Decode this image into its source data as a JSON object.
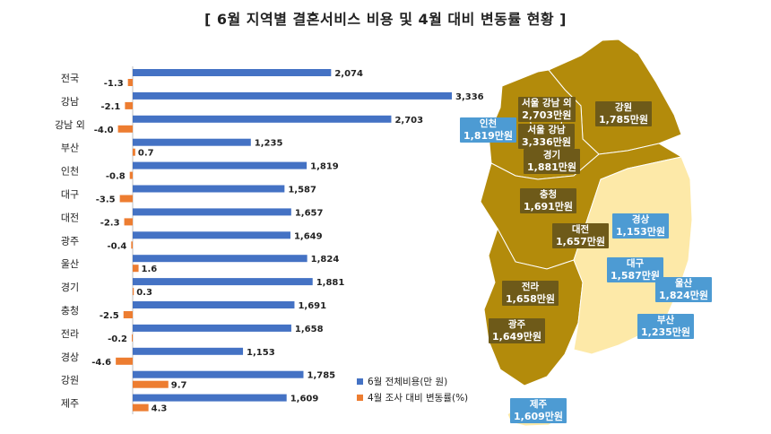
{
  "title": "[ 6월 지역별 결혼서비스 비용 및 4월 대비 변동률 현황 ]",
  "colors": {
    "cost_bar": "#4472c4",
    "change_bar": "#ed7d31",
    "map_dark": "#b38b0b",
    "map_light": "#fde9a8",
    "map_border": "#ffffff",
    "label_dark": "#6e5a19",
    "label_blue": "#4d9bd3"
  },
  "legend": {
    "cost": "6월 전체비용(만 원)",
    "change": "4월 조사 대비 변동률(%)"
  },
  "chart_data": {
    "type": "bar",
    "orientation": "horizontal",
    "categories": [
      "전국",
      "강남",
      "강남 외",
      "부산",
      "인천",
      "대구",
      "대전",
      "광주",
      "울산",
      "경기",
      "충청",
      "전라",
      "경상",
      "강원",
      "제주"
    ],
    "series": [
      {
        "name": "6월 전체비용(만 원)",
        "values": [
          2074,
          3336,
          2703,
          1235,
          1819,
          1587,
          1657,
          1649,
          1824,
          1881,
          1691,
          1658,
          1153,
          1785,
          1609
        ],
        "value_labels": [
          "2,074",
          "3,336",
          "2,703",
          "1,235",
          "1,819",
          "1,587",
          "1,657",
          "1,649",
          "1,824",
          "1,881",
          "1,691",
          "1,658",
          "1,153",
          "1,785",
          "1,609"
        ]
      },
      {
        "name": "4월 조사 대비 변동률(%)",
        "values": [
          -1.3,
          -2.1,
          -4.0,
          0.7,
          -0.8,
          -3.5,
          -2.3,
          -0.4,
          1.6,
          0.3,
          -2.5,
          -0.2,
          -4.6,
          9.7,
          4.3
        ],
        "value_labels": [
          "-1.3",
          "-2.1",
          "-4.0",
          "0.7",
          "-0.8",
          "-3.5",
          "-2.3",
          "-0.4",
          "1.6",
          "0.3",
          "-2.5",
          "-0.2",
          "-4.6",
          "9.7",
          "4.3"
        ]
      }
    ]
  },
  "map_labels": [
    {
      "id": "seoul-outer",
      "name": "서울 강남 외",
      "value": "2,703만원",
      "style": "dark"
    },
    {
      "id": "seoul-gangnam",
      "name": "서울 강남",
      "value": "3,336만원",
      "style": "dark"
    },
    {
      "id": "incheon",
      "name": "인천",
      "value": "1,819만원",
      "style": "blue"
    },
    {
      "id": "gangwon",
      "name": "강원",
      "value": "1,785만원",
      "style": "dark"
    },
    {
      "id": "gyeonggi",
      "name": "경기",
      "value": "1,881만원",
      "style": "dark"
    },
    {
      "id": "chungcheong",
      "name": "충청",
      "value": "1,691만원",
      "style": "dark"
    },
    {
      "id": "daejeon",
      "name": "대전",
      "value": "1,657만원",
      "style": "dark"
    },
    {
      "id": "gyeongsang",
      "name": "경상",
      "value": "1,153만원",
      "style": "blue"
    },
    {
      "id": "daegu",
      "name": "대구",
      "value": "1,587만원",
      "style": "blue"
    },
    {
      "id": "ulsan",
      "name": "울산",
      "value": "1,824만원",
      "style": "blue"
    },
    {
      "id": "busan",
      "name": "부산",
      "value": "1,235만원",
      "style": "blue"
    },
    {
      "id": "jeolla",
      "name": "전라",
      "value": "1,658만원",
      "style": "dark"
    },
    {
      "id": "gwangju",
      "name": "광주",
      "value": "1,649만원",
      "style": "dark"
    },
    {
      "id": "jeju",
      "name": "제주",
      "value": "1,609만원",
      "style": "blue"
    }
  ]
}
